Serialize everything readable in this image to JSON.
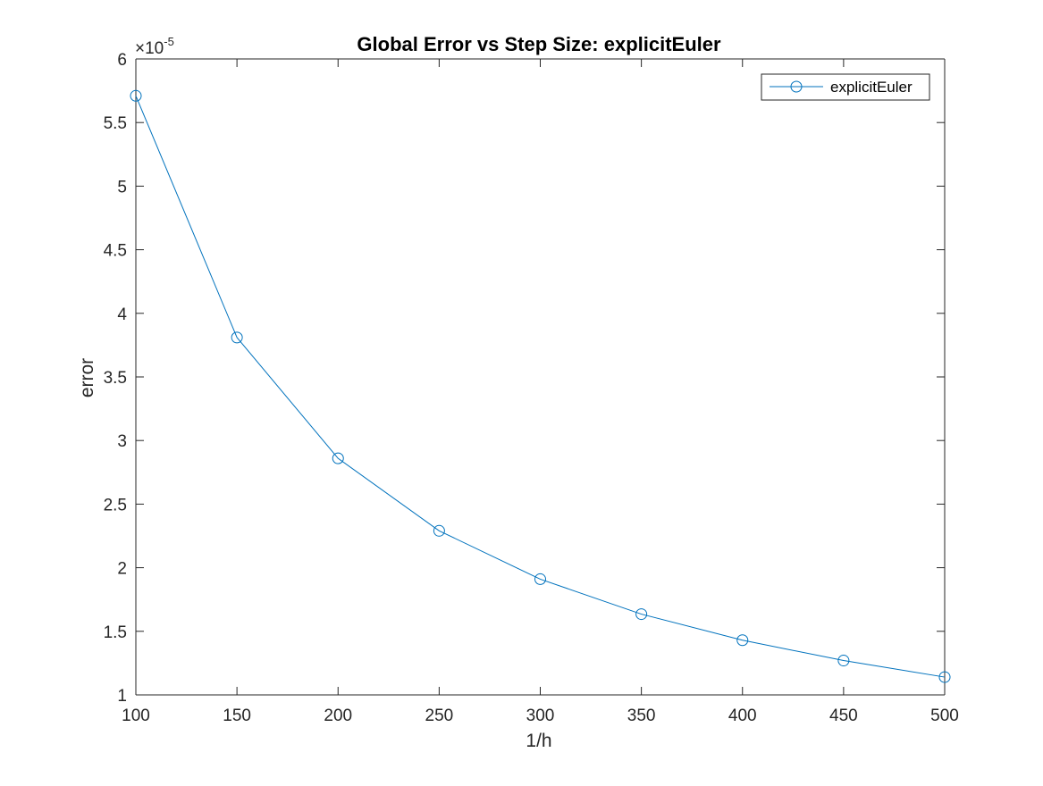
{
  "chart_data": {
    "type": "line",
    "title": "Global Error vs Step Size: explicitEuler",
    "xlabel": "1/h",
    "ylabel": "error",
    "xlim": [
      100,
      500
    ],
    "ylim": [
      1,
      6
    ],
    "x_ticks": [
      100,
      150,
      200,
      250,
      300,
      350,
      400,
      450,
      500
    ],
    "y_ticks": [
      1,
      1.5,
      2,
      2.5,
      3,
      3.5,
      4,
      4.5,
      5,
      5.5,
      6
    ],
    "y_tick_labels": [
      "1",
      "1.5",
      "2",
      "2.5",
      "3",
      "3.5",
      "4",
      "4.5",
      "5",
      "5.5",
      "6"
    ],
    "y_exponent_base": "×10",
    "y_exponent_power": "-5",
    "grid": false,
    "legend": {
      "placement": "top-right",
      "entries": [
        "explicitEuler"
      ]
    },
    "series": [
      {
        "name": "explicitEuler",
        "color": "#0072BD",
        "marker": "circle",
        "x": [
          100,
          150,
          200,
          250,
          300,
          350,
          400,
          450,
          500
        ],
        "y": [
          5.71,
          3.81,
          2.86,
          2.29,
          1.91,
          1.635,
          1.43,
          1.27,
          1.14
        ]
      }
    ]
  }
}
